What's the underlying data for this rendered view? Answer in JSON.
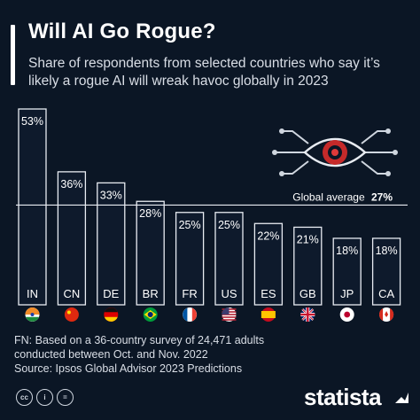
{
  "header": {
    "title": "Will AI Go Rogue?",
    "subtitle": "Share of respondents from selected countries who say it’s likely a rogue AI will wreak havoc globally in 2023"
  },
  "chart_data": {
    "type": "bar",
    "categories": [
      "IN",
      "CN",
      "DE",
      "BR",
      "FR",
      "US",
      "ES",
      "GB",
      "JP",
      "CA"
    ],
    "values": [
      53,
      36,
      33,
      28,
      25,
      25,
      22,
      21,
      18,
      18
    ],
    "value_labels": [
      "53%",
      "36%",
      "33%",
      "28%",
      "25%",
      "25%",
      "22%",
      "21%",
      "18%",
      "18%"
    ],
    "flags": [
      "india-flag",
      "china-flag",
      "germany-flag",
      "brazil-flag",
      "france-flag",
      "usa-flag",
      "spain-flag",
      "uk-flag",
      "japan-flag",
      "canada-flag"
    ],
    "reference_line": {
      "label": "Global average",
      "value_label": "27%",
      "value": 27
    },
    "ylim": [
      0,
      53
    ],
    "grid": false,
    "bar_fill": "#0e1a2c",
    "bar_outline": "#e8ecf2",
    "xlabel": "",
    "ylabel": ""
  },
  "footer": {
    "note": "FN: Based on a 36-country survey of 24,471 adults",
    "note2": "conducted between Oct. and Nov. 2022",
    "source": "Source: Ipsos Global Advisor 2023 Predictions"
  },
  "brand": {
    "name": "statista",
    "license_icons": [
      "cc-icon",
      "attribution-icon",
      "equals-icon"
    ]
  },
  "colors": {
    "background": "#0b1625",
    "text": "#ffffff",
    "accent_red": "#e03a3a"
  }
}
